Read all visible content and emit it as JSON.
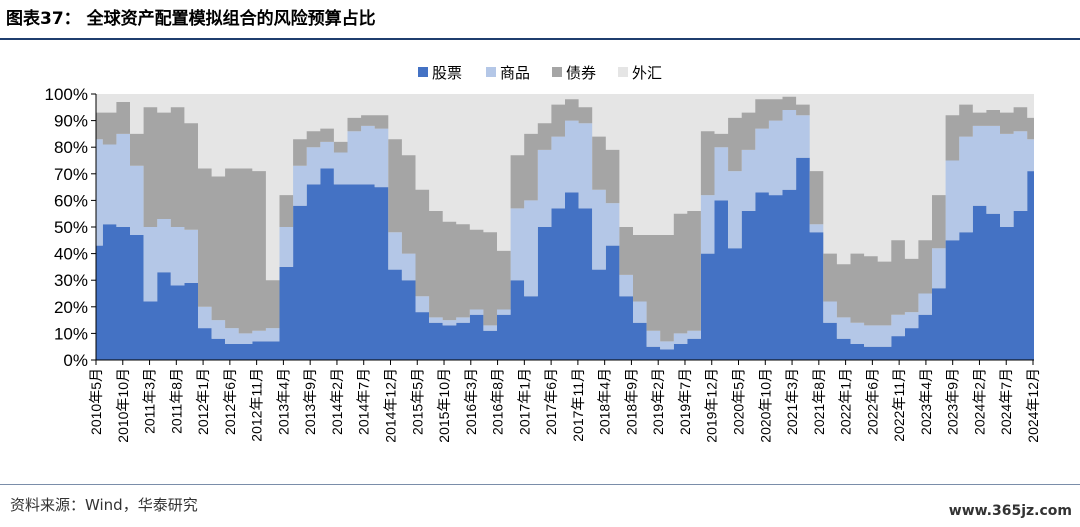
{
  "title": "图表37： 全球资产配置模拟组合的风险预算占比",
  "source": "资料来源：Wind，华泰研究",
  "watermark": "www.365jz.com",
  "chart_data": {
    "type": "area",
    "stacked": true,
    "ylim": [
      0,
      100
    ],
    "yticks": [
      "0%",
      "10%",
      "20%",
      "30%",
      "40%",
      "50%",
      "60%",
      "70%",
      "80%",
      "90%",
      "100%"
    ],
    "xticks": [
      "2010年5月",
      "2010年10月",
      "2011年3月",
      "2011年8月",
      "2012年1月",
      "2012年6月",
      "2012年11月",
      "2013年4月",
      "2013年9月",
      "2014年2月",
      "2014年7月",
      "2014年12月",
      "2015年5月",
      "2015年10月",
      "2016年3月",
      "2016年8月",
      "2017年1月",
      "2017年6月",
      "2017年11月",
      "2018年4月",
      "2018年9月",
      "2019年2月",
      "2019年7月",
      "2019年12月",
      "2020年5月",
      "2020年10月",
      "2021年3月",
      "2021年8月",
      "2022年1月",
      "2022年6月",
      "2022年11月",
      "2023年4月",
      "2023年9月",
      "2024年2月",
      "2024年7月",
      "2024年12月"
    ],
    "legend_position": "top-center",
    "colors": {
      "股票": "#4472c4",
      "商品": "#b4c7e7",
      "债券": "#a5a5a5",
      "外汇": "#e5e5e5"
    },
    "series": [
      {
        "name": "股票",
        "values": [
          43,
          51,
          50,
          47,
          22,
          33,
          28,
          29,
          12,
          8,
          6,
          6,
          7,
          7,
          35,
          58,
          66,
          72,
          66,
          66,
          66,
          65,
          34,
          30,
          18,
          14,
          13,
          14,
          17,
          11,
          17,
          30,
          24,
          50,
          57,
          63,
          57,
          34,
          43,
          24,
          14,
          5,
          4,
          6,
          8,
          40,
          60,
          42,
          56,
          63,
          62,
          64,
          76,
          48,
          14,
          8,
          6,
          5,
          5,
          9,
          12,
          17,
          27,
          45,
          48,
          58,
          55,
          50,
          56,
          71
        ]
      },
      {
        "name": "商品",
        "values": [
          40,
          30,
          35,
          26,
          28,
          20,
          22,
          20,
          8,
          7,
          6,
          4,
          4,
          5,
          15,
          15,
          14,
          10,
          12,
          20,
          22,
          22,
          14,
          10,
          6,
          2,
          2,
          2,
          2,
          2,
          2,
          27,
          36,
          29,
          27,
          27,
          32,
          30,
          16,
          8,
          8,
          6,
          3,
          4,
          3,
          22,
          20,
          29,
          23,
          24,
          28,
          30,
          16,
          3,
          8,
          8,
          8,
          8,
          8,
          8,
          6,
          8,
          15,
          30,
          36,
          30,
          33,
          35,
          30,
          12
        ]
      },
      {
        "name": "债券",
        "values": [
          10,
          12,
          12,
          12,
          45,
          40,
          45,
          40,
          52,
          54,
          60,
          62,
          60,
          18,
          12,
          10,
          6,
          5,
          4,
          5,
          4,
          5,
          35,
          37,
          40,
          40,
          37,
          35,
          30,
          35,
          22,
          20,
          25,
          10,
          12,
          8,
          6,
          20,
          20,
          18,
          25,
          36,
          40,
          45,
          45,
          24,
          5,
          20,
          14,
          11,
          8,
          5,
          4,
          20,
          18,
          20,
          26,
          26,
          24,
          28,
          20,
          20,
          20,
          17,
          12,
          5,
          6,
          8,
          9,
          8
        ]
      }
    ]
  }
}
